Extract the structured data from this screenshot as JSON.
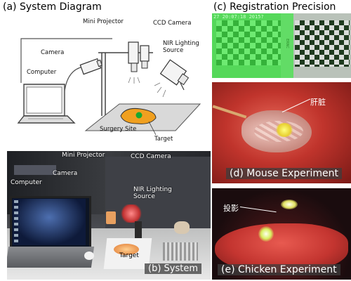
{
  "panel_a": {
    "title": "(a) System Diagram",
    "labels": {
      "camera": "Camera",
      "computer": "Computer",
      "mini_projector": "Mini Projector",
      "ccd_camera": "CCD Camera",
      "nir_lighting": "NIR Lighting\nSource",
      "surgery_site": "Surgery Site",
      "target": "Target"
    }
  },
  "panel_b": {
    "caption": "(b) System",
    "labels": {
      "mini_projector": "Mini Projector",
      "ccd_camera": "CCD Camera",
      "camera": "Camera",
      "computer": "Computer",
      "nir_lighting": "NIR Lighting\nSource",
      "target": "Target"
    }
  },
  "panel_c": {
    "title": "(c) Registration Precision",
    "timestamp": "27 20:07:18 2015?",
    "side_text": "ERNC"
  },
  "panel_d": {
    "caption": "(d) Mouse Experiment",
    "annotation": "肝脏"
  },
  "panel_e": {
    "caption": "(e) Chicken Experiment",
    "annotation": "投影"
  },
  "colors": {
    "grid_green": "#4fd850",
    "grid_dark": "#1e6a1c",
    "mouse_bg": "#c0342c",
    "chicken_bg": "#c43530",
    "target_orange": "#f0a020"
  }
}
